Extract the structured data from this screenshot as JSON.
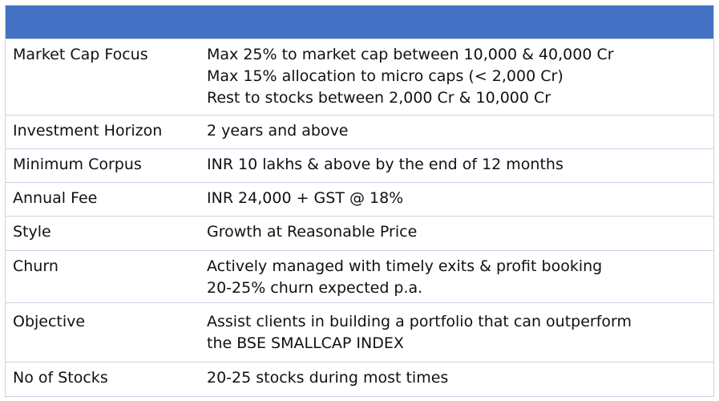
{
  "rows": [
    {
      "label": "Market Cap Focus",
      "value": "Max 25% to market cap between 10,000 & 40,000 Cr\nMax 15% allocation to micro caps (< 2,000 Cr)\nRest to stocks between 2,000 Cr & 10,000 Cr"
    },
    {
      "label": "Investment Horizon",
      "value": "2 years and above"
    },
    {
      "label": "Minimum Corpus",
      "value": "INR 10 lakhs & above by the end of 12 months"
    },
    {
      "label": "Annual Fee",
      "value": "INR 24,000 + GST @ 18%"
    },
    {
      "label": "Style",
      "value": "Growth at Reasonable Price"
    },
    {
      "label": "Churn",
      "value": "Actively managed with timely exits & profit booking\n20-25% churn expected p.a."
    },
    {
      "label": "Objective",
      "value": "Assist clients in building a portfolio that can outperform\nthe BSE SMALLCAP INDEX"
    },
    {
      "label": "No of Stocks",
      "value": "20-25 stocks during most times"
    }
  ]
}
